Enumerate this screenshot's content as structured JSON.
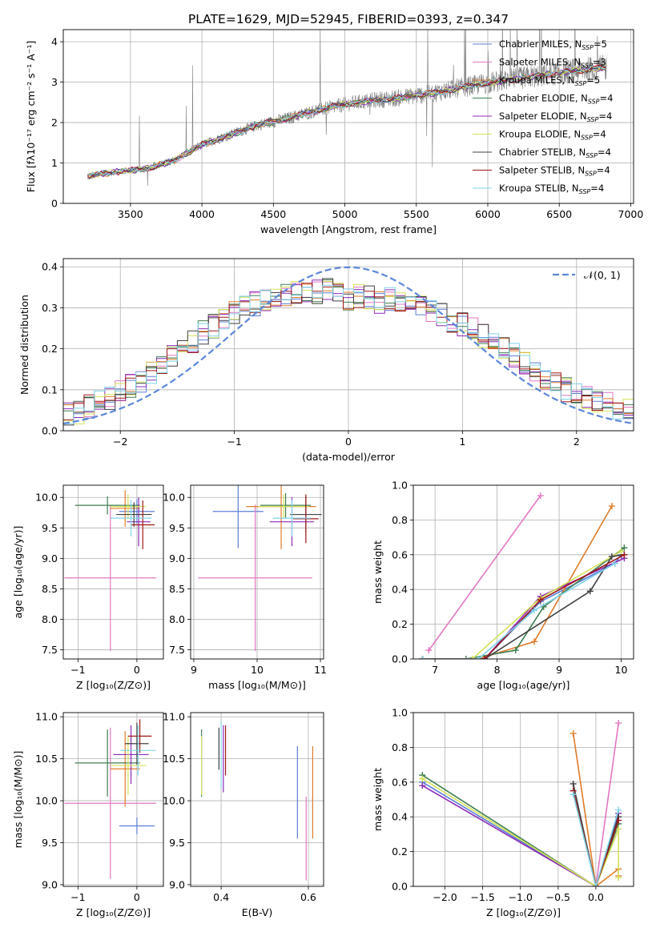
{
  "title": "PLATE=1629, MJD=52945, FIBERID=0393, z=0.347",
  "colors": {
    "chab_miles": "#5b7fd6",
    "salp_miles": "#e377c2",
    "krou_miles": "#e07b28",
    "chab_elodie": "#3f7f52",
    "salp_elodie": "#8c2bb8",
    "krou_elodie": "#d4e157",
    "chab_stelib": "#404040",
    "salp_stelib": "#a01818",
    "krou_stelib": "#7fd4e8",
    "data": "#7f7f7f",
    "gauss": "#5b87d9",
    "grid": "#b0b0b0"
  },
  "legend_spectrum": [
    {
      "key": "chab_miles",
      "label": "Chabrier MILES, N",
      "sub": "SSP",
      "n": "=5"
    },
    {
      "key": "salp_miles",
      "label": "Salpeter MILES, N",
      "sub": "SSP",
      "n": "=3"
    },
    {
      "key": "krou_miles",
      "label": "Kroupa MILES, N",
      "sub": "SSP",
      "n": "=5"
    },
    {
      "key": "chab_elodie",
      "label": "Chabrier ELODIE, N",
      "sub": "SSP",
      "n": "=4"
    },
    {
      "key": "salp_elodie",
      "label": "Salpeter ELODIE, N",
      "sub": "SSP",
      "n": "=4"
    },
    {
      "key": "krou_elodie",
      "label": "Kroupa ELODIE, N",
      "sub": "SSP",
      "n": "=4"
    },
    {
      "key": "chab_stelib",
      "label": "Chabrier STELIB, N",
      "sub": "SSP",
      "n": "=4"
    },
    {
      "key": "salp_stelib",
      "label": "Salpeter STELIB, N",
      "sub": "SSP",
      "n": "=4"
    },
    {
      "key": "krou_stelib",
      "label": "Kroupa STELIB, N",
      "sub": "SSP",
      "n": "=4"
    }
  ],
  "chart_data": [
    {
      "id": "spectrum",
      "type": "line",
      "xlabel": "wavelength [Angstrom, rest frame]",
      "ylabel": "Flux [fλ10⁻¹⁷ erg cm⁻² s⁻¹ A⁻¹]",
      "xlim": [
        3030,
        7020
      ],
      "ylim": [
        0,
        4.3
      ],
      "xticks": [
        3500,
        4000,
        4500,
        5000,
        5500,
        6000,
        6500,
        7000
      ],
      "yticks": [
        0,
        1,
        2,
        3,
        4
      ],
      "model_continuum": [
        [
          3200,
          0.68
        ],
        [
          3400,
          0.78
        ],
        [
          3600,
          0.85
        ],
        [
          3800,
          1.05
        ],
        [
          4000,
          1.45
        ],
        [
          4200,
          1.7
        ],
        [
          4400,
          1.95
        ],
        [
          4600,
          2.1
        ],
        [
          4800,
          2.3
        ],
        [
          5000,
          2.45
        ],
        [
          5200,
          2.55
        ],
        [
          5400,
          2.62
        ],
        [
          5600,
          2.72
        ],
        [
          5800,
          2.85
        ],
        [
          6000,
          2.98
        ],
        [
          6200,
          3.08
        ],
        [
          6400,
          3.18
        ],
        [
          6600,
          3.28
        ],
        [
          6800,
          3.35
        ]
      ]
    },
    {
      "id": "residuals",
      "type": "line",
      "xlabel": "(data-model)/error",
      "ylabel": "Normed distribution",
      "xlim": [
        -2.5,
        2.5
      ],
      "ylim": [
        0,
        0.42
      ],
      "xticks": [
        -2,
        -1,
        0,
        1,
        2
      ],
      "yticks": [
        0.0,
        0.1,
        0.2,
        0.3,
        0.4
      ],
      "legend": "𝒩(0, 1)",
      "hist_mean": [
        0.04,
        0.045,
        0.06,
        0.075,
        0.08,
        0.1,
        0.11,
        0.12,
        0.145,
        0.165,
        0.18,
        0.2,
        0.22,
        0.24,
        0.255,
        0.27,
        0.29,
        0.3,
        0.31,
        0.32,
        0.33,
        0.335,
        0.34,
        0.335,
        0.34,
        0.345,
        0.335,
        0.32,
        0.33,
        0.325,
        0.315,
        0.32,
        0.31,
        0.3,
        0.3,
        0.29,
        0.285,
        0.27,
        0.26,
        0.25,
        0.23,
        0.22,
        0.2,
        0.185,
        0.165,
        0.14,
        0.125,
        0.115,
        0.1,
        0.09,
        0.08,
        0.07,
        0.065,
        0.055,
        0.05
      ]
    },
    {
      "id": "age_vs_z",
      "type": "scatter",
      "xlabel": "Z [log₁₀(Z/Z⊙)]",
      "ylabel": "age  [log₁₀(age/yr)]",
      "xlim": [
        -1.25,
        0.45
      ],
      "ylim": [
        7.35,
        10.2
      ],
      "xticks": [
        -1,
        0
      ],
      "yticks": [
        7.5,
        8.0,
        8.5,
        9.0,
        9.5,
        10.0
      ],
      "points": [
        {
          "key": "chab_miles",
          "x": 0.0,
          "xerr": 0.3,
          "y": 9.77,
          "yerr": 0.2
        },
        {
          "key": "salp_miles",
          "x": -0.45,
          "xerr": 0.78,
          "y": 8.68,
          "yerr": 1.2
        },
        {
          "key": "krou_miles",
          "x": -0.2,
          "xerr": 0.25,
          "y": 9.82,
          "yerr": 0.3
        },
        {
          "key": "chab_elodie",
          "x": -0.5,
          "xerr": 0.55,
          "y": 9.87,
          "yerr": 0.15
        },
        {
          "key": "salp_elodie",
          "x": 0.03,
          "xerr": 0.2,
          "y": 9.6,
          "yerr": 0.4
        },
        {
          "key": "krou_elodie",
          "x": -0.15,
          "xerr": 0.3,
          "y": 9.85,
          "yerr": 0.2
        },
        {
          "key": "chab_stelib",
          "x": -0.05,
          "xerr": 0.3,
          "y": 9.72,
          "yerr": 0.2
        },
        {
          "key": "salp_stelib",
          "x": 0.1,
          "xerr": 0.2,
          "y": 9.55,
          "yerr": 0.4
        },
        {
          "key": "krou_stelib",
          "x": -0.1,
          "xerr": 0.35,
          "y": 9.66,
          "yerr": 0.3
        }
      ]
    },
    {
      "id": "age_vs_mass",
      "type": "scatter",
      "xlabel": "mass [log₁₀(M/M⊙)]",
      "ylabel": "",
      "xlim": [
        8.95,
        11.05
      ],
      "ylim": [
        7.35,
        10.2
      ],
      "xticks": [
        9,
        10,
        11
      ],
      "yticks": [
        7.5,
        8.0,
        8.5,
        9.0,
        9.5,
        10.0
      ],
      "points": [
        {
          "key": "chab_miles",
          "x": 9.7,
          "xerr": 0.4,
          "y": 9.77,
          "yerr": 0.6
        },
        {
          "key": "salp_miles",
          "x": 9.97,
          "xerr": 0.9,
          "y": 8.68,
          "yerr": 1.2
        },
        {
          "key": "krou_miles",
          "x": 10.38,
          "xerr": 0.55,
          "y": 9.85,
          "yerr": 0.7
        },
        {
          "key": "chab_elodie",
          "x": 10.45,
          "xerr": 0.4,
          "y": 9.87,
          "yerr": 0.2
        },
        {
          "key": "salp_elodie",
          "x": 10.55,
          "xerr": 0.35,
          "y": 9.6,
          "yerr": 0.4
        },
        {
          "key": "krou_elodie",
          "x": 10.42,
          "xerr": 0.4,
          "y": 9.85,
          "yerr": 0.2
        },
        {
          "key": "chab_stelib",
          "x": 10.77,
          "xerr": 0.25,
          "y": 9.72,
          "yerr": 0.3
        },
        {
          "key": "salp_stelib",
          "x": 10.77,
          "xerr": 0.2,
          "y": 9.65,
          "yerr": 0.4
        },
        {
          "key": "krou_stelib",
          "x": 10.55,
          "xerr": 0.3,
          "y": 9.66,
          "yerr": 0.3
        }
      ]
    },
    {
      "id": "mass_weight_vs_age",
      "type": "line",
      "xlabel": "age  [log₁₀(age/yr)]",
      "ylabel": "mass weight",
      "xlim": [
        6.65,
        10.2
      ],
      "ylim": [
        0,
        1.0
      ],
      "xticks": [
        7,
        8,
        9,
        10
      ],
      "yticks": [
        0.0,
        0.2,
        0.4,
        0.6,
        0.8,
        1.0
      ],
      "series": [
        {
          "key": "chab_miles",
          "x": [
            6.8,
            7.8,
            8.7,
            9.9,
            10.0
          ],
          "y": [
            0.0,
            0.0,
            0.33,
            0.55,
            0.6
          ]
        },
        {
          "key": "salp_miles",
          "x": [
            6.9,
            8.7
          ],
          "y": [
            0.05,
            0.94
          ]
        },
        {
          "key": "krou_miles",
          "x": [
            6.8,
            7.7,
            8.6,
            9.85
          ],
          "y": [
            0.0,
            0.0,
            0.1,
            0.88
          ]
        },
        {
          "key": "chab_elodie",
          "x": [
            6.8,
            7.5,
            8.3,
            8.75,
            10.05
          ],
          "y": [
            0.0,
            0.0,
            0.05,
            0.3,
            0.64
          ]
        },
        {
          "key": "salp_elodie",
          "x": [
            6.8,
            7.8,
            8.7,
            10.05
          ],
          "y": [
            0.0,
            0.0,
            0.36,
            0.58
          ]
        },
        {
          "key": "krou_elodie",
          "x": [
            6.8,
            7.6,
            8.7,
            10.0
          ],
          "y": [
            0.0,
            0.0,
            0.35,
            0.62
          ]
        },
        {
          "key": "chab_stelib",
          "x": [
            6.8,
            7.8,
            9.5,
            9.85,
            10.05
          ],
          "y": [
            0.0,
            0.0,
            0.39,
            0.59,
            0.6
          ]
        },
        {
          "key": "salp_stelib",
          "x": [
            6.8,
            7.8,
            8.7,
            10.05
          ],
          "y": [
            0.0,
            0.0,
            0.34,
            0.6
          ]
        },
        {
          "key": "krou_stelib",
          "x": [
            6.8,
            7.7,
            8.6,
            9.9
          ],
          "y": [
            0.0,
            0.0,
            0.28,
            0.55
          ]
        }
      ]
    },
    {
      "id": "mass_vs_z",
      "type": "scatter",
      "xlabel": "Z [log₁₀(Z/Z⊙)]",
      "ylabel": "mass [log₁₀(M/M⊙)]",
      "xlim": [
        -1.25,
        0.45
      ],
      "ylim": [
        8.98,
        11.05
      ],
      "xticks": [
        -1,
        0
      ],
      "yticks": [
        9.0,
        9.5,
        10.0,
        10.5,
        11.0
      ],
      "points": [
        {
          "key": "chab_miles",
          "x": 0.0,
          "xerr": 0.3,
          "y": 9.7,
          "yerr": 0.1
        },
        {
          "key": "salp_miles",
          "x": -0.45,
          "xerr": 0.78,
          "y": 9.97,
          "yerr": 0.9
        },
        {
          "key": "krou_miles",
          "x": -0.2,
          "xerr": 0.25,
          "y": 10.38,
          "yerr": 0.45
        },
        {
          "key": "chab_elodie",
          "x": -0.5,
          "xerr": 0.55,
          "y": 10.45,
          "yerr": 0.4
        },
        {
          "key": "salp_elodie",
          "x": -0.1,
          "xerr": 0.3,
          "y": 10.55,
          "yerr": 0.35
        },
        {
          "key": "krou_elodie",
          "x": -0.15,
          "xerr": 0.3,
          "y": 10.42,
          "yerr": 0.35
        },
        {
          "key": "chab_stelib",
          "x": 0.0,
          "xerr": 0.2,
          "y": 10.68,
          "yerr": 0.25
        },
        {
          "key": "salp_stelib",
          "x": 0.05,
          "xerr": 0.2,
          "y": 10.77,
          "yerr": 0.2
        },
        {
          "key": "krou_stelib",
          "x": 0.02,
          "xerr": 0.3,
          "y": 10.6,
          "yerr": 0.3
        }
      ]
    },
    {
      "id": "mass_vs_ebv",
      "type": "scatter",
      "xlabel": "E(B-V)",
      "ylabel": "",
      "xlim": [
        0.33,
        0.635
      ],
      "ylim": [
        8.98,
        11.05
      ],
      "xticks": [
        0.4,
        0.6
      ],
      "yticks": [
        9.0,
        9.5,
        10.0,
        10.5,
        11.0
      ],
      "points": [
        {
          "key": "chab_miles",
          "x": 0.575,
          "xerr": 0.0,
          "y": 10.1,
          "yerr": 0.55
        },
        {
          "key": "salp_miles",
          "x": 0.595,
          "xerr": 0.0,
          "y": 9.55,
          "yerr": 0.5
        },
        {
          "key": "krou_miles",
          "x": 0.61,
          "xerr": 0.0,
          "y": 10.1,
          "yerr": 0.55
        },
        {
          "key": "chab_elodie",
          "x": 0.355,
          "xerr": 0.0,
          "y": 10.45,
          "yerr": 0.4
        },
        {
          "key": "salp_elodie",
          "x": 0.405,
          "xerr": 0.0,
          "y": 10.5,
          "yerr": 0.4
        },
        {
          "key": "krou_elodie",
          "x": 0.355,
          "xerr": 0.0,
          "y": 10.42,
          "yerr": 0.35
        },
        {
          "key": "chab_stelib",
          "x": 0.395,
          "xerr": 0.0,
          "y": 10.62,
          "yerr": 0.25
        },
        {
          "key": "salp_stelib",
          "x": 0.41,
          "xerr": 0.0,
          "y": 10.6,
          "yerr": 0.3
        },
        {
          "key": "krou_stelib",
          "x": 0.4,
          "xerr": 0.0,
          "y": 10.55,
          "yerr": 0.4
        }
      ]
    },
    {
      "id": "mass_weight_vs_z",
      "type": "line",
      "xlabel": "Z [log₁₀(Z/Z⊙)]",
      "ylabel": "mass weight",
      "xlim": [
        -2.42,
        0.5
      ],
      "ylim": [
        0,
        1.0
      ],
      "xticks": [
        -2.0,
        -1.5,
        -1.0,
        -0.5,
        0.0
      ],
      "yticks": [
        0.0,
        0.2,
        0.4,
        0.6,
        0.8,
        1.0
      ],
      "xticklabels": [
        "−2.0",
        "−1.5",
        "−1.0",
        "−0.5",
        "0.0"
      ],
      "series": [
        {
          "key": "chab_miles",
          "x": [
            -2.3,
            0.0,
            0.3
          ],
          "y": [
            0.6,
            0.0,
            0.4
          ]
        },
        {
          "key": "salp_miles",
          "x": [
            0.0,
            0.3
          ],
          "y": [
            0.0,
            0.94
          ]
        },
        {
          "key": "krou_miles",
          "x": [
            -0.3,
            0.0,
            0.3,
            0.3
          ],
          "y": [
            0.88,
            0.0,
            0.1,
            0.06
          ]
        },
        {
          "key": "chab_elodie",
          "x": [
            -2.3,
            0.0,
            0.3
          ],
          "y": [
            0.64,
            0.0,
            0.36
          ]
        },
        {
          "key": "salp_elodie",
          "x": [
            -2.3,
            0.0,
            0.3
          ],
          "y": [
            0.58,
            0.0,
            0.42
          ]
        },
        {
          "key": "krou_elodie",
          "x": [
            -2.3,
            0.0,
            0.3,
            0.3
          ],
          "y": [
            0.62,
            0.0,
            0.33,
            0.05
          ]
        },
        {
          "key": "chab_stelib",
          "x": [
            -0.3,
            0.0,
            0.3
          ],
          "y": [
            0.59,
            0.0,
            0.4
          ]
        },
        {
          "key": "salp_stelib",
          "x": [
            -0.3,
            0.0,
            0.3
          ],
          "y": [
            0.55,
            0.0,
            0.38
          ]
        },
        {
          "key": "krou_stelib",
          "x": [
            -0.3,
            0.0,
            0.3
          ],
          "y": [
            0.53,
            0.0,
            0.44
          ]
        }
      ]
    }
  ]
}
